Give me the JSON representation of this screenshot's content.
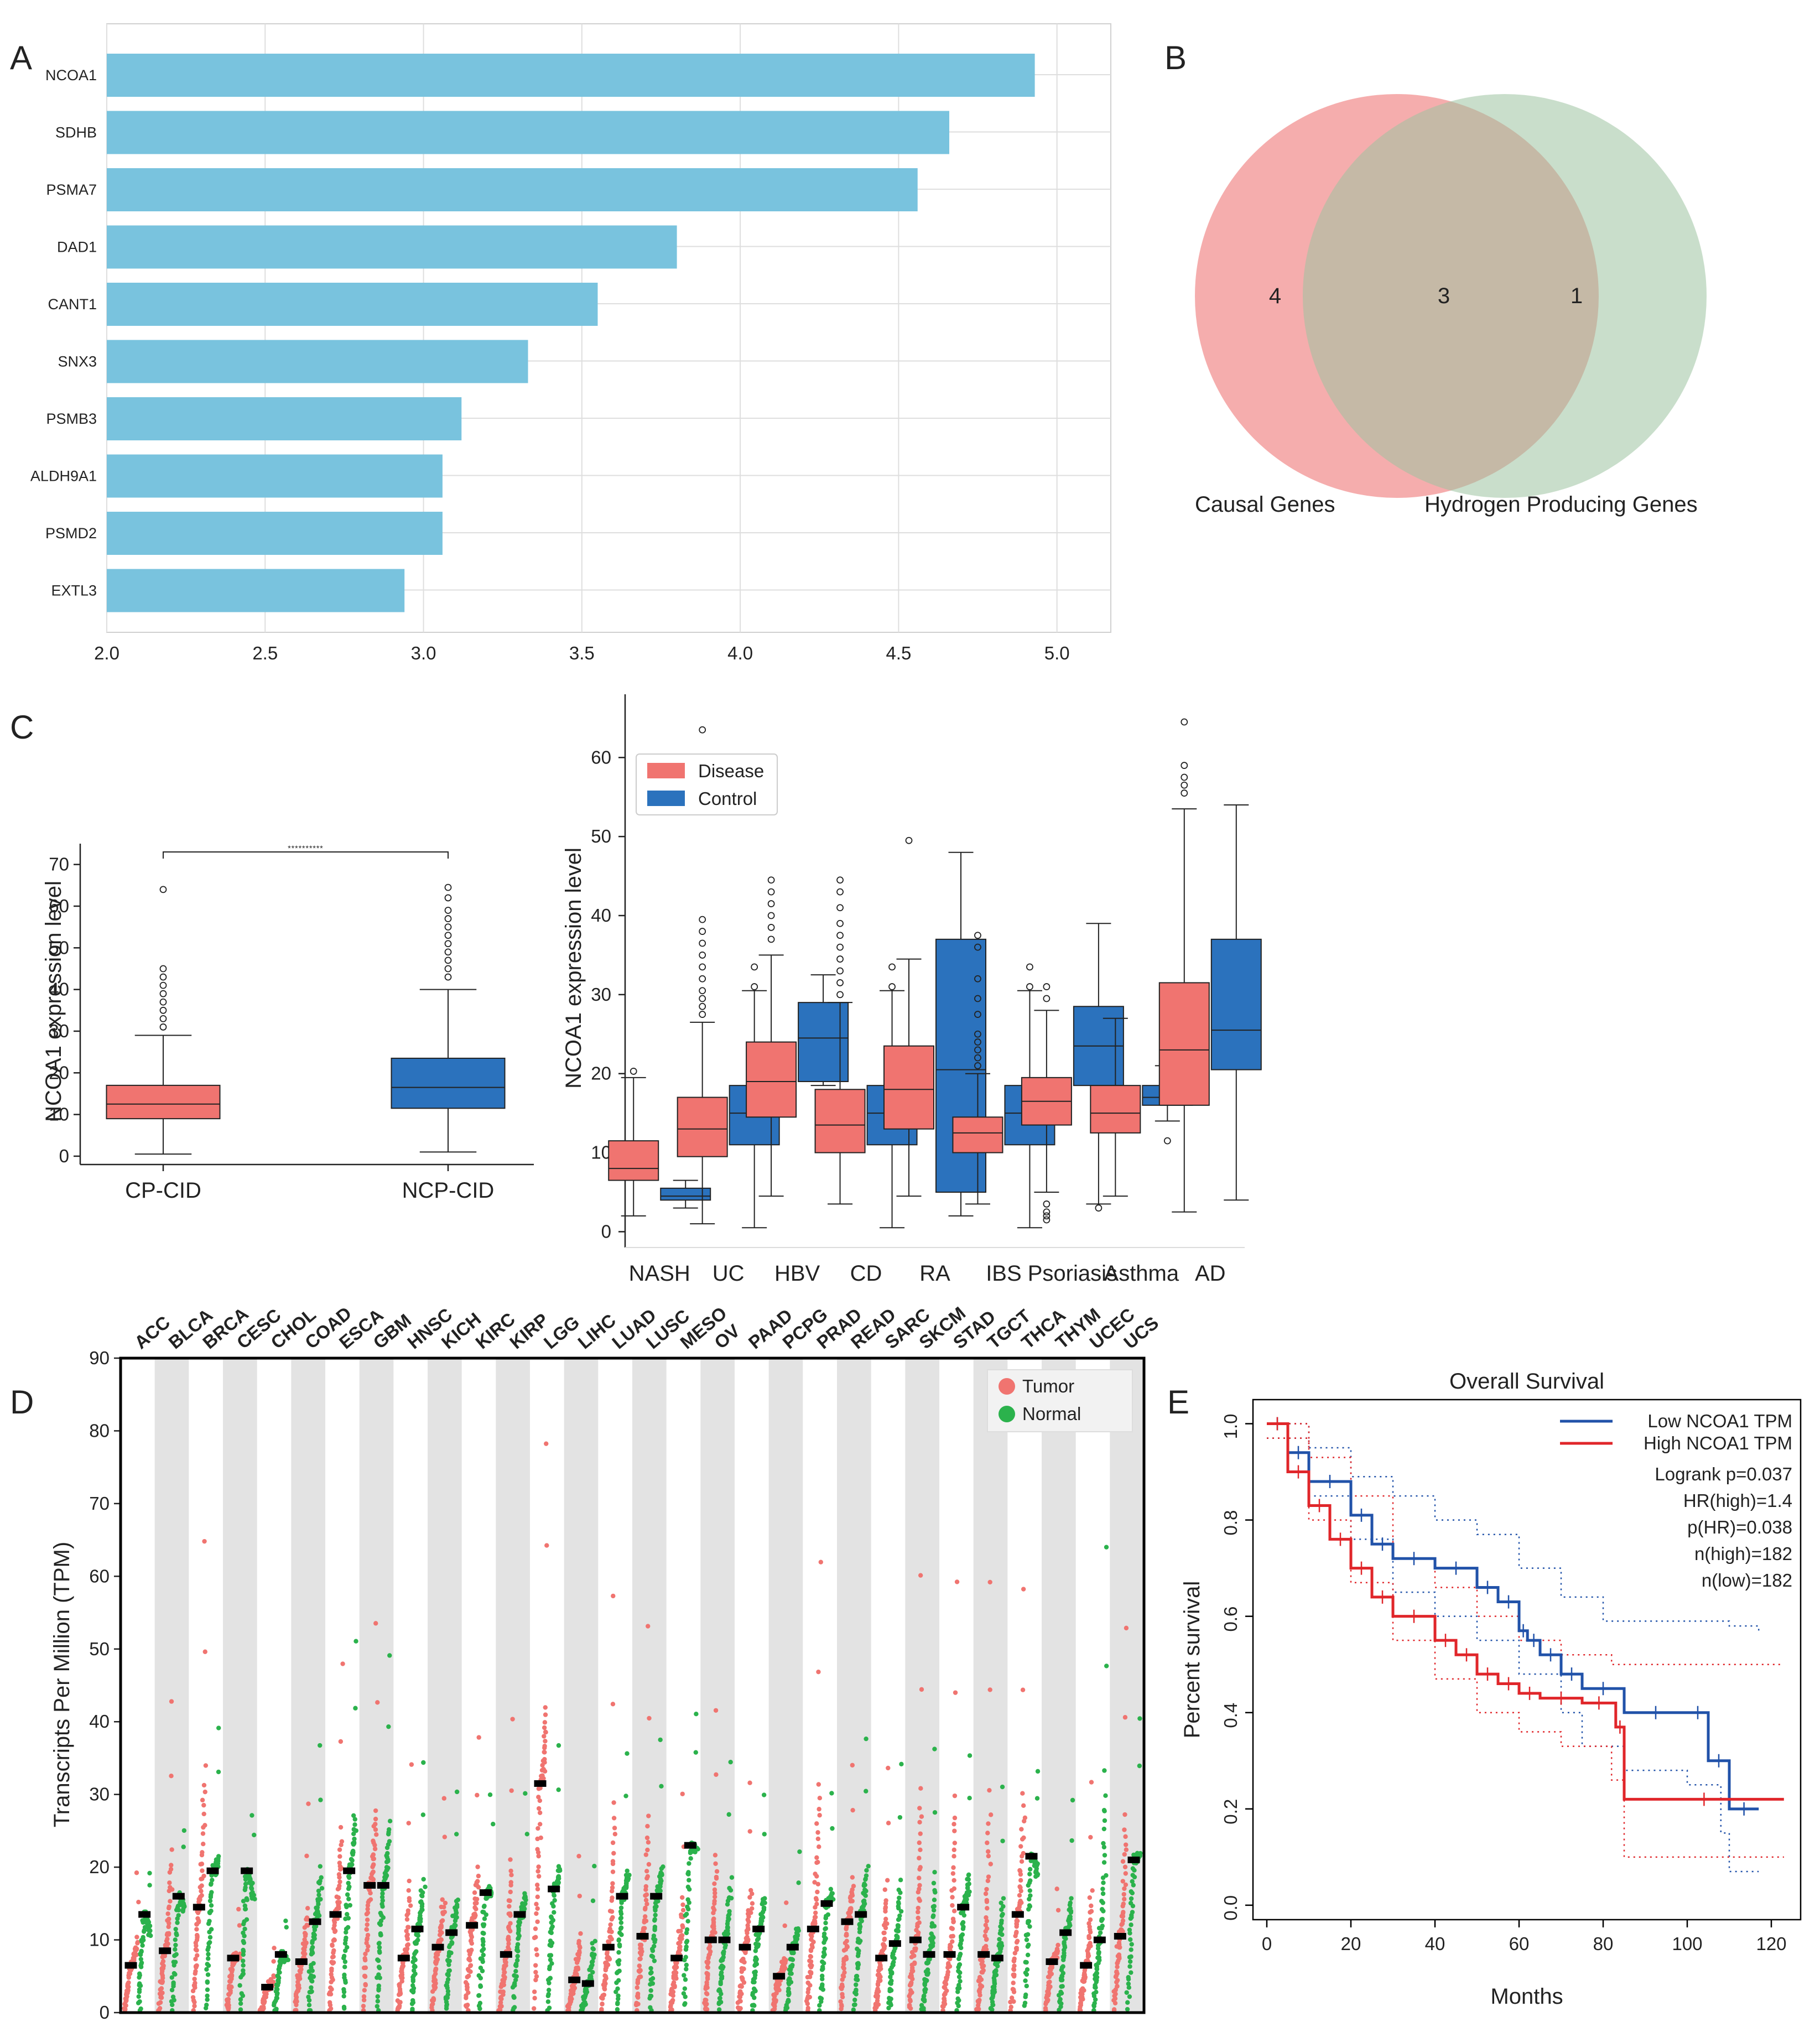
{
  "panels": {
    "A": {
      "letter": "A",
      "chart_data": {
        "type": "bar",
        "orientation": "horizontal",
        "categories": [
          "NCOA1",
          "SDHB",
          "PSMA7",
          "DAD1",
          "CANT1",
          "SNX3",
          "PSMB3",
          "ALDH9A1",
          "PSMD2",
          "EXTL3"
        ],
        "values": [
          4.93,
          4.66,
          4.56,
          3.8,
          3.55,
          3.33,
          3.12,
          3.06,
          3.06,
          2.94
        ],
        "xlim": [
          2.0,
          5.17
        ],
        "xticks": [
          "2.0",
          "2.5",
          "3.0",
          "3.5",
          "4.0",
          "4.5",
          "5.0"
        ],
        "bar_color": "#79c3de",
        "grid": true
      }
    },
    "B": {
      "letter": "B",
      "chart_data": {
        "type": "venn",
        "sets": [
          {
            "name": "Causal Genes",
            "only": "4",
            "color": "#f39b9b"
          },
          {
            "name": "Hydrogen Producing Genes",
            "only": "1",
            "color": "#9cc2a0"
          }
        ],
        "intersection": "3"
      }
    },
    "C": {
      "letter": "C",
      "left": {
        "chart_data": {
          "type": "box",
          "ylabel": "NCOA1 expression level",
          "ylim": [
            -2,
            75
          ],
          "yticks": [
            "0",
            "10",
            "20",
            "30",
            "40",
            "50",
            "60",
            "70"
          ],
          "significance": "**********",
          "groups": [
            {
              "name": "CP-CID",
              "color": "#f07470",
              "min": 0.5,
              "q1": 9,
              "median": 12.5,
              "q3": 17,
              "max": 29,
              "outliers": [
                31,
                33,
                35,
                37,
                39,
                41,
                43,
                45,
                64
              ]
            },
            {
              "name": "NCP-CID",
              "color": "#2b72bd",
              "min": 1,
              "q1": 11.5,
              "median": 16.5,
              "q3": 23.5,
              "max": 40,
              "outliers": [
                43,
                45,
                47,
                49,
                51,
                53,
                55,
                57,
                59,
                62,
                64.5
              ]
            }
          ]
        }
      },
      "right": {
        "chart_data": {
          "type": "box",
          "ylabel": "NCOA1 expression level",
          "ylim": [
            -2,
            68
          ],
          "yticks": [
            "0",
            "10",
            "20",
            "30",
            "40",
            "50",
            "60"
          ],
          "legend": [
            {
              "label": "Disease",
              "color": "#f07470"
            },
            {
              "label": "Control",
              "color": "#2b72bd"
            }
          ],
          "categories": [
            "NASH",
            "UC",
            "HBV",
            "CD",
            "RA",
            "IBS",
            "Psoriasis",
            "Asthma",
            "AD"
          ],
          "series": [
            {
              "name": "Disease",
              "boxes": [
                {
                  "min": 2,
                  "q1": 6.5,
                  "median": 8,
                  "q3": 11.5,
                  "max": 19.5,
                  "outliers": [
                    20.3
                  ]
                },
                {
                  "min": 1,
                  "q1": 9.5,
                  "median": 13,
                  "q3": 17,
                  "max": 26.5,
                  "outliers": [
                    27.5,
                    28.5,
                    29.5,
                    30.5,
                    32,
                    33.5,
                    35,
                    36.5,
                    38,
                    39.5,
                    63.5
                  ]
                },
                {
                  "min": 4.5,
                  "q1": 14.5,
                  "median": 19,
                  "q3": 24,
                  "max": 35,
                  "outliers": [
                    37,
                    38.5,
                    40,
                    41.5,
                    43,
                    44.5
                  ]
                },
                {
                  "min": 3.5,
                  "q1": 10,
                  "median": 13.5,
                  "q3": 18,
                  "max": 29,
                  "outliers": [
                    30,
                    31.5,
                    33,
                    34.5,
                    36,
                    37.5,
                    39,
                    41,
                    43,
                    44.5
                  ]
                },
                {
                  "min": 4.5,
                  "q1": 13,
                  "median": 18,
                  "q3": 23.5,
                  "max": 34.5,
                  "outliers": [
                    49.5
                  ]
                },
                {
                  "min": 3.5,
                  "q1": 10,
                  "median": 12.5,
                  "q3": 14.5,
                  "max": 20,
                  "outliers": [
                    21,
                    22,
                    23,
                    24,
                    25,
                    27.5,
                    29.5,
                    32,
                    36,
                    37.5
                  ]
                },
                {
                  "min": 5,
                  "q1": 13.5,
                  "median": 16.5,
                  "q3": 19.5,
                  "max": 28,
                  "outliers": [
                    1.5,
                    2,
                    2.5,
                    3.5,
                    29.5,
                    31
                  ]
                },
                {
                  "min": 4.5,
                  "q1": 12.5,
                  "median": 15,
                  "q3": 18.5,
                  "max": 27,
                  "outliers": []
                },
                {
                  "min": 2.5,
                  "q1": 16,
                  "median": 23,
                  "q3": 31.5,
                  "max": 53.5,
                  "outliers": [
                    55.5,
                    56.5,
                    57.5,
                    59,
                    64.5
                  ]
                }
              ]
            },
            {
              "name": "Control",
              "boxes": [
                {
                  "min": 3,
                  "q1": 4,
                  "median": 4.5,
                  "q3": 5.5,
                  "max": 6.5,
                  "outliers": []
                },
                {
                  "min": 0.5,
                  "q1": 11,
                  "median": 15,
                  "q3": 18.5,
                  "max": 30.5,
                  "outliers": [
                    31,
                    33.5
                  ]
                },
                {
                  "min": 18.5,
                  "q1": 19,
                  "median": 24.5,
                  "q3": 29,
                  "max": 32.5,
                  "outliers": []
                },
                {
                  "min": 0.5,
                  "q1": 11,
                  "median": 15,
                  "q3": 18.5,
                  "max": 30.5,
                  "outliers": [
                    31,
                    33.5
                  ]
                },
                {
                  "min": 2,
                  "q1": 5,
                  "median": 20.5,
                  "q3": 37,
                  "max": 48,
                  "outliers": []
                },
                {
                  "min": 0.5,
                  "q1": 11,
                  "median": 15,
                  "q3": 18.5,
                  "max": 30.5,
                  "outliers": [
                    31,
                    33.5
                  ]
                },
                {
                  "min": 3.5,
                  "q1": 18.5,
                  "median": 23.5,
                  "q3": 28.5,
                  "max": 39,
                  "outliers": [
                    3
                  ]
                },
                {
                  "min": 14,
                  "q1": 16,
                  "median": 17,
                  "q3": 18.5,
                  "max": 21,
                  "outliers": [
                    11.5
                  ]
                },
                {
                  "min": 4,
                  "q1": 20.5,
                  "median": 25.5,
                  "q3": 37,
                  "max": 54,
                  "outliers": []
                }
              ]
            }
          ]
        }
      }
    },
    "D": {
      "letter": "D",
      "chart_data": {
        "type": "scatter",
        "ylabel": "Transcripts Per Million (TPM)",
        "ylim": [
          0,
          90
        ],
        "yticks": [
          "0",
          "10",
          "20",
          "30",
          "40",
          "50",
          "60",
          "70",
          "80",
          "90"
        ],
        "legend": [
          {
            "label": "Tumor",
            "color": "#f07470"
          },
          {
            "label": "Normal",
            "color": "#2bb24c"
          }
        ],
        "categories": [
          "ACC",
          "BLCA",
          "BRCA",
          "CESC",
          "CHOL",
          "COAD",
          "ESCA",
          "GBM",
          "HNSC",
          "KICH",
          "KIRC",
          "KIRP",
          "LGG",
          "LIHC",
          "LUAD",
          "LUSC",
          "MESO",
          "OV",
          "PAAD",
          "PCPG",
          "PRAD",
          "READ",
          "SARC",
          "SKCM",
          "STAD",
          "TGCT",
          "THCA",
          "THYM",
          "UCEC",
          "UCS"
        ],
        "tumor_median": [
          6.5,
          8.5,
          14.5,
          7.5,
          3.5,
          7,
          13.5,
          17.5,
          7.5,
          9,
          12,
          8,
          31.5,
          4.5,
          9,
          10.5,
          7.5,
          10,
          9,
          5,
          11.5,
          12.5,
          7.5,
          10,
          8,
          8,
          13.5,
          7,
          6.5,
          10.5
        ],
        "tumor_max": [
          19,
          43,
          65,
          14,
          9,
          28,
          48,
          53,
          34,
          30,
          38,
          41,
          78,
          21,
          57,
          53,
          30,
          42,
          32,
          15,
          62,
          34,
          34,
          60,
          59,
          59,
          58,
          17,
          32,
          53
        ],
        "normal_median": [
          13.5,
          16,
          19.5,
          19.5,
          8,
          12.5,
          19.5,
          17.5,
          11.5,
          11,
          16.5,
          13.5,
          17,
          4,
          16,
          16,
          23,
          10,
          11.5,
          9,
          15,
          13.5,
          9.5,
          8,
          14.5,
          7.5,
          21.5,
          11,
          10,
          21
        ],
        "normal_max": [
          19,
          25,
          39,
          27,
          13,
          37,
          51,
          49,
          34,
          30,
          30,
          30,
          37,
          20,
          36,
          38,
          41,
          35,
          30,
          22,
          30,
          38,
          34,
          36,
          36,
          31,
          33,
          29,
          64,
          40
        ]
      }
    },
    "E": {
      "letter": "E",
      "chart_data": {
        "type": "line",
        "title": "Overall Survival",
        "xlabel": "Months",
        "ylabel": "Percent survival",
        "xlim": [
          0,
          125
        ],
        "ylim": [
          -0.03,
          1.05
        ],
        "xticks": [
          "0",
          "20",
          "40",
          "60",
          "80",
          "100",
          "120"
        ],
        "yticks": [
          "0.0",
          "0.2",
          "0.4",
          "0.6",
          "0.8",
          "1.0"
        ],
        "series": [
          {
            "name": "Low NCOA1 TPM",
            "color": "#2152a9",
            "x": [
              0,
              5,
              10,
              20,
              25,
              30,
              40,
              50,
              55,
              60,
              62,
              65,
              70,
              75,
              85,
              100,
              105,
              110,
              117
            ],
            "y": [
              1.0,
              0.94,
              0.88,
              0.81,
              0.75,
              0.72,
              0.7,
              0.66,
              0.63,
              0.57,
              0.55,
              0.52,
              0.48,
              0.45,
              0.4,
              0.4,
              0.3,
              0.2,
              0.2
            ]
          },
          {
            "name": "High NCOA1 TPM",
            "color": "#e0262a",
            "x": [
              0,
              5,
              10,
              15,
              20,
              25,
              30,
              40,
              45,
              50,
              55,
              60,
              65,
              75,
              83,
              85,
              123
            ],
            "y": [
              1.0,
              0.9,
              0.83,
              0.76,
              0.7,
              0.64,
              0.6,
              0.55,
              0.52,
              0.48,
              0.46,
              0.44,
              0.43,
              0.42,
              0.37,
              0.22,
              0.22
            ]
          }
        ],
        "ci_low": {
          "x": [
            0,
            10,
            20,
            30,
            40,
            50,
            60,
            70,
            75,
            85,
            100,
            108,
            110,
            117
          ],
          "y": [
            0.97,
            0.85,
            0.76,
            0.65,
            0.6,
            0.55,
            0.48,
            0.4,
            0.33,
            0.28,
            0.25,
            0.15,
            0.07,
            0.07
          ]
        },
        "ci_high": {
          "x": [
            0,
            10,
            20,
            30,
            40,
            50,
            60,
            70,
            80,
            100,
            110,
            117
          ],
          "y": [
            1.0,
            0.95,
            0.89,
            0.85,
            0.8,
            0.77,
            0.7,
            0.64,
            0.59,
            0.59,
            0.58,
            0.57
          ]
        },
        "ci_high_red": {
          "x": [
            0,
            10,
            20,
            30,
            40,
            50,
            60,
            70,
            82,
            85,
            123
          ],
          "y": [
            1.0,
            0.93,
            0.85,
            0.72,
            0.66,
            0.6,
            0.55,
            0.52,
            0.5,
            0.5,
            0.5
          ]
        },
        "ci_low_red": {
          "x": [
            0,
            10,
            20,
            30,
            40,
            50,
            60,
            70,
            82,
            85,
            123
          ],
          "y": [
            0.97,
            0.8,
            0.67,
            0.55,
            0.47,
            0.4,
            0.36,
            0.33,
            0.26,
            0.1,
            0.1
          ]
        },
        "annotations": [
          "Logrank p=0.037",
          "HR(high)=1.4",
          "p(HR)=0.038",
          "n(high)=182",
          "n(low)=182"
        ]
      }
    }
  }
}
